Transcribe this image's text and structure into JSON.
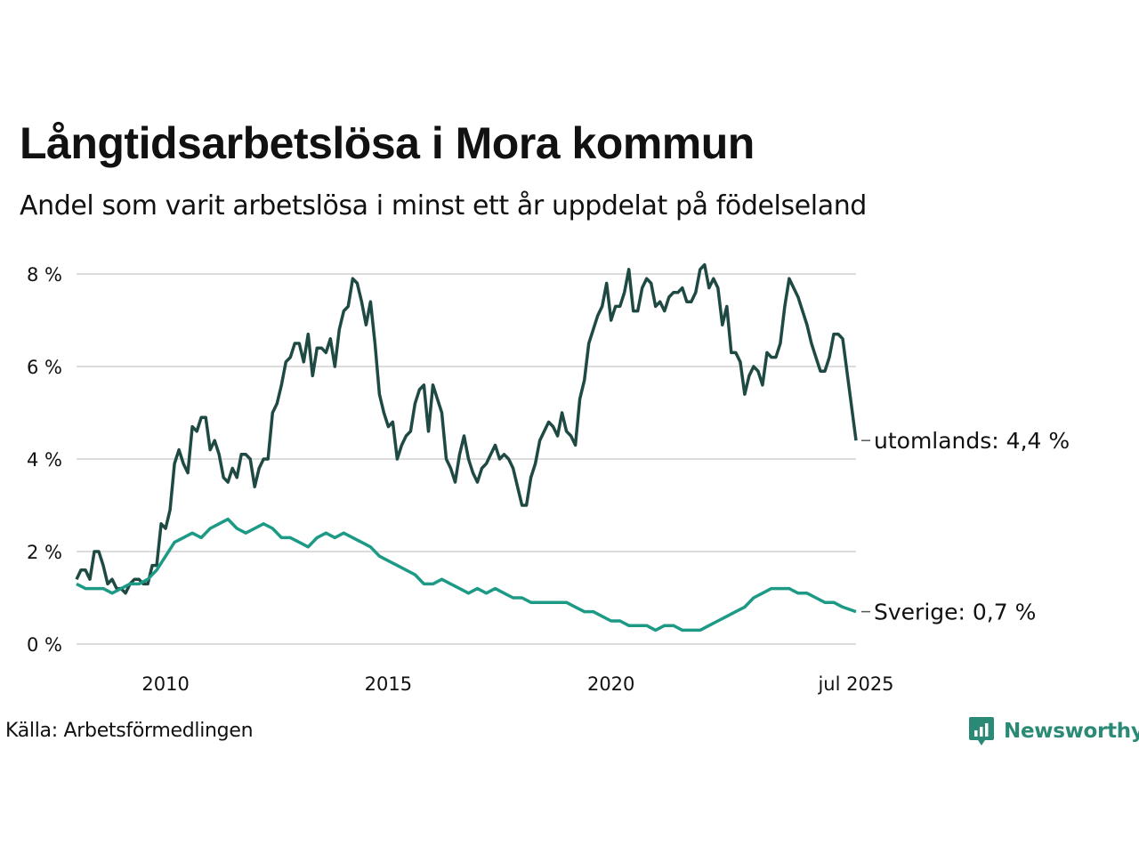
{
  "title": "Långtidsarbetslösa i Mora kommun",
  "subtitle": "Andel som varit arbetslösa i minst ett år uppdelat på födelseland",
  "source": "Källa: Arbetsförmedlingen",
  "brand": {
    "name": "Newsworthy",
    "icon": "newsworthy-logo-icon",
    "color": "#2a8a76"
  },
  "chart_data": {
    "type": "line",
    "xlim": [
      2008.0,
      2025.5
    ],
    "ylim": [
      0,
      8
    ],
    "grid": true,
    "x_ticks": [
      2010,
      2015,
      2020,
      2025.5
    ],
    "x_tick_labels": [
      "2010",
      "2015",
      "2020",
      "jul 2025"
    ],
    "y_ticks": [
      0,
      2,
      4,
      6,
      8
    ],
    "y_tick_labels": [
      "0 %",
      "2 %",
      "4 %",
      "6 %",
      "8 %"
    ],
    "series": [
      {
        "name": "utomlands",
        "end_label": "utomlands: 4,4 %",
        "color": "#1f4a44",
        "points": [
          [
            2008.0,
            1.4
          ],
          [
            2008.1,
            1.6
          ],
          [
            2008.2,
            1.6
          ],
          [
            2008.3,
            1.4
          ],
          [
            2008.4,
            2.0
          ],
          [
            2008.5,
            2.0
          ],
          [
            2008.6,
            1.7
          ],
          [
            2008.7,
            1.3
          ],
          [
            2008.8,
            1.4
          ],
          [
            2008.9,
            1.2
          ],
          [
            2009.0,
            1.2
          ],
          [
            2009.1,
            1.1
          ],
          [
            2009.2,
            1.3
          ],
          [
            2009.3,
            1.4
          ],
          [
            2009.4,
            1.4
          ],
          [
            2009.5,
            1.3
          ],
          [
            2009.6,
            1.3
          ],
          [
            2009.7,
            1.7
          ],
          [
            2009.8,
            1.7
          ],
          [
            2009.9,
            2.6
          ],
          [
            2010.0,
            2.5
          ],
          [
            2010.1,
            2.9
          ],
          [
            2010.2,
            3.9
          ],
          [
            2010.3,
            4.2
          ],
          [
            2010.4,
            3.9
          ],
          [
            2010.5,
            3.7
          ],
          [
            2010.6,
            4.7
          ],
          [
            2010.7,
            4.6
          ],
          [
            2010.8,
            4.9
          ],
          [
            2010.9,
            4.9
          ],
          [
            2011.0,
            4.2
          ],
          [
            2011.1,
            4.4
          ],
          [
            2011.2,
            4.1
          ],
          [
            2011.3,
            3.6
          ],
          [
            2011.4,
            3.5
          ],
          [
            2011.5,
            3.8
          ],
          [
            2011.6,
            3.6
          ],
          [
            2011.7,
            4.1
          ],
          [
            2011.8,
            4.1
          ],
          [
            2011.9,
            4.0
          ],
          [
            2012.0,
            3.4
          ],
          [
            2012.1,
            3.8
          ],
          [
            2012.2,
            4.0
          ],
          [
            2012.3,
            4.0
          ],
          [
            2012.4,
            5.0
          ],
          [
            2012.5,
            5.2
          ],
          [
            2012.6,
            5.6
          ],
          [
            2012.7,
            6.1
          ],
          [
            2012.8,
            6.2
          ],
          [
            2012.9,
            6.5
          ],
          [
            2013.0,
            6.5
          ],
          [
            2013.1,
            6.1
          ],
          [
            2013.2,
            6.7
          ],
          [
            2013.3,
            5.8
          ],
          [
            2013.4,
            6.4
          ],
          [
            2013.5,
            6.4
          ],
          [
            2013.6,
            6.3
          ],
          [
            2013.7,
            6.6
          ],
          [
            2013.8,
            6.0
          ],
          [
            2013.9,
            6.8
          ],
          [
            2014.0,
            7.2
          ],
          [
            2014.1,
            7.3
          ],
          [
            2014.2,
            7.9
          ],
          [
            2014.3,
            7.8
          ],
          [
            2014.4,
            7.4
          ],
          [
            2014.5,
            6.9
          ],
          [
            2014.6,
            7.4
          ],
          [
            2014.7,
            6.5
          ],
          [
            2014.8,
            5.4
          ],
          [
            2014.9,
            5.0
          ],
          [
            2015.0,
            4.7
          ],
          [
            2015.1,
            4.8
          ],
          [
            2015.2,
            4.0
          ],
          [
            2015.3,
            4.3
          ],
          [
            2015.4,
            4.5
          ],
          [
            2015.5,
            4.6
          ],
          [
            2015.6,
            5.2
          ],
          [
            2015.7,
            5.5
          ],
          [
            2015.8,
            5.6
          ],
          [
            2015.9,
            4.6
          ],
          [
            2016.0,
            5.6
          ],
          [
            2016.1,
            5.3
          ],
          [
            2016.2,
            5.0
          ],
          [
            2016.3,
            4.0
          ],
          [
            2016.4,
            3.8
          ],
          [
            2016.5,
            3.5
          ],
          [
            2016.6,
            4.1
          ],
          [
            2016.7,
            4.5
          ],
          [
            2016.8,
            4.0
          ],
          [
            2016.9,
            3.7
          ],
          [
            2017.0,
            3.5
          ],
          [
            2017.1,
            3.8
          ],
          [
            2017.2,
            3.9
          ],
          [
            2017.3,
            4.1
          ],
          [
            2017.4,
            4.3
          ],
          [
            2017.5,
            4.0
          ],
          [
            2017.6,
            4.1
          ],
          [
            2017.7,
            4.0
          ],
          [
            2017.8,
            3.8
          ],
          [
            2017.9,
            3.4
          ],
          [
            2018.0,
            3.0
          ],
          [
            2018.1,
            3.0
          ],
          [
            2018.2,
            3.6
          ],
          [
            2018.3,
            3.9
          ],
          [
            2018.4,
            4.4
          ],
          [
            2018.5,
            4.6
          ],
          [
            2018.6,
            4.8
          ],
          [
            2018.7,
            4.7
          ],
          [
            2018.8,
            4.5
          ],
          [
            2018.9,
            5.0
          ],
          [
            2019.0,
            4.6
          ],
          [
            2019.1,
            4.5
          ],
          [
            2019.2,
            4.3
          ],
          [
            2019.3,
            5.3
          ],
          [
            2019.4,
            5.7
          ],
          [
            2019.5,
            6.5
          ],
          [
            2019.6,
            6.8
          ],
          [
            2019.7,
            7.1
          ],
          [
            2019.8,
            7.3
          ],
          [
            2019.9,
            7.8
          ],
          [
            2020.0,
            7.0
          ],
          [
            2020.1,
            7.3
          ],
          [
            2020.2,
            7.3
          ],
          [
            2020.3,
            7.6
          ],
          [
            2020.4,
            8.1
          ],
          [
            2020.5,
            7.2
          ],
          [
            2020.6,
            7.2
          ],
          [
            2020.7,
            7.7
          ],
          [
            2020.8,
            7.9
          ],
          [
            2020.9,
            7.8
          ],
          [
            2021.0,
            7.3
          ],
          [
            2021.1,
            7.4
          ],
          [
            2021.2,
            7.2
          ],
          [
            2021.3,
            7.5
          ],
          [
            2021.4,
            7.6
          ],
          [
            2021.5,
            7.6
          ],
          [
            2021.6,
            7.7
          ],
          [
            2021.7,
            7.4
          ],
          [
            2021.8,
            7.4
          ],
          [
            2021.9,
            7.6
          ],
          [
            2022.0,
            8.1
          ],
          [
            2022.1,
            8.2
          ],
          [
            2022.2,
            7.7
          ],
          [
            2022.3,
            7.9
          ],
          [
            2022.4,
            7.7
          ],
          [
            2022.5,
            6.9
          ],
          [
            2022.6,
            7.3
          ],
          [
            2022.7,
            6.3
          ],
          [
            2022.8,
            6.3
          ],
          [
            2022.9,
            6.1
          ],
          [
            2023.0,
            5.4
          ],
          [
            2023.1,
            5.8
          ],
          [
            2023.2,
            6.0
          ],
          [
            2023.3,
            5.9
          ],
          [
            2023.4,
            5.6
          ],
          [
            2023.5,
            6.3
          ],
          [
            2023.6,
            6.2
          ],
          [
            2023.7,
            6.2
          ],
          [
            2023.8,
            6.5
          ],
          [
            2023.9,
            7.3
          ],
          [
            2024.0,
            7.9
          ],
          [
            2024.1,
            7.7
          ],
          [
            2024.2,
            7.5
          ],
          [
            2024.3,
            7.2
          ],
          [
            2024.4,
            6.9
          ],
          [
            2024.5,
            6.5
          ],
          [
            2024.6,
            6.2
          ],
          [
            2024.7,
            5.9
          ],
          [
            2024.8,
            5.9
          ],
          [
            2024.9,
            6.2
          ],
          [
            2025.0,
            6.7
          ],
          [
            2025.1,
            6.7
          ],
          [
            2025.2,
            6.6
          ],
          [
            2025.5,
            4.4
          ]
        ]
      },
      {
        "name": "Sverige",
        "end_label": "Sverige: 0,7 %",
        "color": "#1c9a86",
        "points": [
          [
            2008.0,
            1.3
          ],
          [
            2008.2,
            1.2
          ],
          [
            2008.4,
            1.2
          ],
          [
            2008.6,
            1.2
          ],
          [
            2008.8,
            1.1
          ],
          [
            2009.0,
            1.2
          ],
          [
            2009.2,
            1.3
          ],
          [
            2009.4,
            1.3
          ],
          [
            2009.6,
            1.4
          ],
          [
            2009.8,
            1.6
          ],
          [
            2010.0,
            1.9
          ],
          [
            2010.2,
            2.2
          ],
          [
            2010.4,
            2.3
          ],
          [
            2010.6,
            2.4
          ],
          [
            2010.8,
            2.3
          ],
          [
            2011.0,
            2.5
          ],
          [
            2011.2,
            2.6
          ],
          [
            2011.4,
            2.7
          ],
          [
            2011.6,
            2.5
          ],
          [
            2011.8,
            2.4
          ],
          [
            2012.0,
            2.5
          ],
          [
            2012.2,
            2.6
          ],
          [
            2012.4,
            2.5
          ],
          [
            2012.6,
            2.3
          ],
          [
            2012.8,
            2.3
          ],
          [
            2013.0,
            2.2
          ],
          [
            2013.2,
            2.1
          ],
          [
            2013.4,
            2.3
          ],
          [
            2013.6,
            2.4
          ],
          [
            2013.8,
            2.3
          ],
          [
            2014.0,
            2.4
          ],
          [
            2014.2,
            2.3
          ],
          [
            2014.4,
            2.2
          ],
          [
            2014.6,
            2.1
          ],
          [
            2014.8,
            1.9
          ],
          [
            2015.0,
            1.8
          ],
          [
            2015.2,
            1.7
          ],
          [
            2015.4,
            1.6
          ],
          [
            2015.6,
            1.5
          ],
          [
            2015.8,
            1.3
          ],
          [
            2016.0,
            1.3
          ],
          [
            2016.2,
            1.4
          ],
          [
            2016.4,
            1.3
          ],
          [
            2016.6,
            1.2
          ],
          [
            2016.8,
            1.1
          ],
          [
            2017.0,
            1.2
          ],
          [
            2017.2,
            1.1
          ],
          [
            2017.4,
            1.2
          ],
          [
            2017.6,
            1.1
          ],
          [
            2017.8,
            1.0
          ],
          [
            2018.0,
            1.0
          ],
          [
            2018.2,
            0.9
          ],
          [
            2018.4,
            0.9
          ],
          [
            2018.6,
            0.9
          ],
          [
            2018.8,
            0.9
          ],
          [
            2019.0,
            0.9
          ],
          [
            2019.2,
            0.8
          ],
          [
            2019.4,
            0.7
          ],
          [
            2019.6,
            0.7
          ],
          [
            2019.8,
            0.6
          ],
          [
            2020.0,
            0.5
          ],
          [
            2020.2,
            0.5
          ],
          [
            2020.4,
            0.4
          ],
          [
            2020.6,
            0.4
          ],
          [
            2020.8,
            0.4
          ],
          [
            2021.0,
            0.3
          ],
          [
            2021.2,
            0.4
          ],
          [
            2021.4,
            0.4
          ],
          [
            2021.6,
            0.3
          ],
          [
            2021.8,
            0.3
          ],
          [
            2022.0,
            0.3
          ],
          [
            2022.2,
            0.4
          ],
          [
            2022.4,
            0.5
          ],
          [
            2022.6,
            0.6
          ],
          [
            2022.8,
            0.7
          ],
          [
            2023.0,
            0.8
          ],
          [
            2023.2,
            1.0
          ],
          [
            2023.4,
            1.1
          ],
          [
            2023.6,
            1.2
          ],
          [
            2023.8,
            1.2
          ],
          [
            2024.0,
            1.2
          ],
          [
            2024.2,
            1.1
          ],
          [
            2024.4,
            1.1
          ],
          [
            2024.6,
            1.0
          ],
          [
            2024.8,
            0.9
          ],
          [
            2025.0,
            0.9
          ],
          [
            2025.2,
            0.8
          ],
          [
            2025.5,
            0.7
          ]
        ]
      }
    ]
  }
}
